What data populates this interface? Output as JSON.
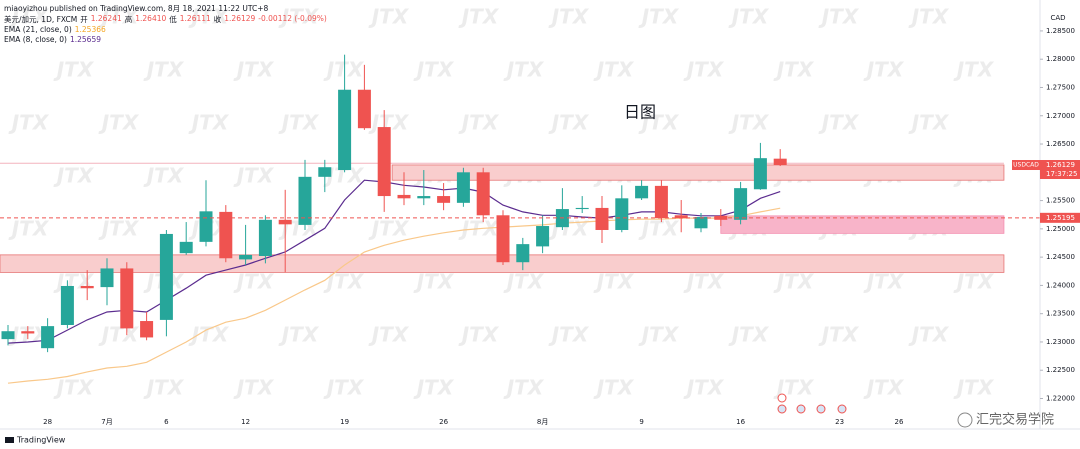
{
  "header": {
    "publisher": "miaoyizhou published on TradingView.com, 8月 18, 2021 11:22 UTC+8",
    "symbol": "美元/加元, 1D, FXCM",
    "open_label": "开",
    "open": "1.26241",
    "high_label": "高",
    "high": "1.26410",
    "low_label": "低",
    "low": "1.26111",
    "close_label": "收",
    "close": "1.26129",
    "change": "-0.00112 (-0.09%)"
  },
  "chart_data": {
    "type": "candlestick",
    "annotation": "日图",
    "watermark": "JTX",
    "categories": [
      null,
      null,
      "28",
      null,
      null,
      "7月",
      null,
      null,
      "6",
      null,
      null,
      null,
      "12",
      null,
      null,
      null,
      null,
      "19",
      null,
      null,
      null,
      null,
      "26",
      null,
      null,
      null,
      null,
      "8月",
      null,
      null,
      null,
      null,
      "9",
      null,
      null,
      null,
      null,
      "16",
      null,
      null,
      null,
      null,
      "23",
      null,
      null,
      "26"
    ],
    "open": [
      1.2305,
      1.2319,
      1.2289,
      1.233,
      1.2399,
      1.2397,
      1.243,
      1.2337,
      1.2339,
      1.2457,
      1.2477,
      1.253,
      1.2446,
      1.2452,
      1.2516,
      1.2507,
      1.2592,
      1.2604,
      1.2746,
      1.268,
      1.256,
      1.2554,
      1.2558,
      1.2546,
      1.26,
      1.2524,
      1.2441,
      1.2469,
      1.2503,
      1.2535,
      1.2537,
      1.2498,
      1.2554,
      1.2576,
      1.2524,
      1.2501,
      1.2523,
      1.2516,
      1.257,
      1.26241,
      null,
      null,
      null,
      null,
      null,
      null
    ],
    "high": [
      1.233,
      1.2328,
      1.2342,
      1.2409,
      1.2427,
      1.2448,
      1.2441,
      1.2353,
      1.2498,
      1.2512,
      1.2586,
      1.2542,
      1.2507,
      1.2524,
      1.2569,
      1.2622,
      1.2622,
      1.2808,
      1.279,
      1.271,
      1.26,
      1.2604,
      1.2581,
      1.2608,
      1.2608,
      1.2533,
      1.2484,
      1.2524,
      1.2572,
      1.2558,
      1.2558,
      1.2577,
      1.2586,
      1.2586,
      1.2551,
      1.2528,
      1.2535,
      1.2583,
      1.2652,
      1.2641,
      null,
      null,
      null,
      null,
      null,
      null
    ],
    "low": [
      1.2294,
      1.2305,
      1.2282,
      1.2324,
      1.2374,
      1.2365,
      1.2312,
      1.2303,
      1.231,
      1.2454,
      1.2469,
      1.2441,
      1.2436,
      1.2439,
      1.2423,
      1.2498,
      1.2565,
      1.26,
      1.2675,
      1.253,
      1.2542,
      1.2542,
      1.2533,
      1.2539,
      1.2512,
      1.2436,
      1.2427,
      1.2457,
      1.2498,
      1.2528,
      1.2475,
      1.2494,
      1.2551,
      1.2512,
      1.2494,
      1.2494,
      1.2505,
      1.2508,
      1.2569,
      1.26111,
      null,
      null,
      null,
      null,
      null,
      null
    ],
    "close": [
      1.2319,
      1.2315,
      1.2328,
      1.2399,
      1.2395,
      1.243,
      1.2324,
      1.2308,
      1.2491,
      1.2477,
      1.2531,
      1.2448,
      1.2454,
      1.2516,
      1.2508,
      1.2592,
      1.2609,
      1.2746,
      1.2678,
      1.2558,
      1.2554,
      1.2558,
      1.2546,
      1.26,
      1.2524,
      1.2441,
      1.2473,
      1.2505,
      1.2535,
      1.2537,
      1.2498,
      1.2554,
      1.2576,
      1.2519,
      1.2519,
      1.2521,
      1.2516,
      1.2572,
      1.2625,
      1.26129,
      null,
      null,
      null,
      null,
      null,
      null
    ],
    "up_color": "#26a69a",
    "down_color": "#ef5350",
    "series": [
      {
        "name": "EMA (21, close, 0)",
        "color": "#f9c88a",
        "values": [
          1.2227,
          1.2231,
          1.2234,
          1.2239,
          1.2247,
          1.2254,
          1.2257,
          1.2264,
          1.2282,
          1.23,
          1.2321,
          1.2335,
          1.2342,
          1.2356,
          1.2374,
          1.2392,
          1.2409,
          1.2436,
          1.2459,
          1.2471,
          1.248,
          1.2487,
          1.2493,
          1.2498,
          1.2501,
          1.2503,
          1.2505,
          1.2507,
          1.251,
          1.2512,
          1.2514,
          1.2516,
          1.2517,
          1.2517,
          1.2519,
          1.2519,
          1.2519,
          1.2523,
          1.253,
          1.25366,
          null,
          null,
          null,
          null,
          null,
          null
        ]
      },
      {
        "name": "EMA (8, close, 0)",
        "color": "#5b2c8f",
        "values": [
          1.2298,
          1.23,
          1.2303,
          1.2321,
          1.2339,
          1.2353,
          1.2356,
          1.2353,
          1.2374,
          1.2395,
          1.2418,
          1.2427,
          1.2436,
          1.2448,
          1.2459,
          1.248,
          1.2501,
          1.2551,
          1.2586,
          1.2583,
          1.2577,
          1.2574,
          1.2569,
          1.2572,
          1.2565,
          1.2542,
          1.253,
          1.2524,
          1.2524,
          1.2521,
          1.2519,
          1.2524,
          1.253,
          1.253,
          1.2526,
          1.2523,
          1.2523,
          1.2533,
          1.2554,
          1.25659,
          null,
          null,
          null,
          null,
          null,
          null
        ]
      }
    ],
    "ylim": [
      1.2162,
      1.2887
    ],
    "yticks": [
      {
        "value": 1.285,
        "label": "1.28500"
      },
      {
        "value": 1.28,
        "label": "1.28000"
      },
      {
        "value": 1.275,
        "label": "1.27500"
      },
      {
        "value": 1.27,
        "label": "1.27000"
      },
      {
        "value": 1.265,
        "label": "1.26500"
      },
      {
        "value": 1.255,
        "label": "1.25500"
      },
      {
        "value": 1.25,
        "label": "1.25000"
      },
      {
        "value": 1.245,
        "label": "1.24500"
      },
      {
        "value": 1.24,
        "label": "1.24000"
      },
      {
        "value": 1.235,
        "label": "1.23500"
      },
      {
        "value": 1.23,
        "label": "1.23000"
      },
      {
        "value": 1.225,
        "label": "1.22500"
      },
      {
        "value": 1.22,
        "label": "1.22000"
      }
    ],
    "zones": [
      {
        "low": 1.2586,
        "high": 1.2613,
        "start": 19.4,
        "end": 50.3,
        "color": "#f9cdcd",
        "border": "#e57373"
      },
      {
        "low": 1.2423,
        "high": 1.2454,
        "start": -0.5,
        "end": 50.3,
        "color": "#f9cdcd",
        "border": "#e57373"
      },
      {
        "low": 1.2492,
        "high": 1.2523,
        "start": 36,
        "end": 50.3,
        "color": "#f8b4c9",
        "border": "#f48fb1"
      }
    ],
    "hline": {
      "value": 1.2616,
      "color": "#f3b3bd"
    },
    "price_line": {
      "value": 1.25195,
      "color": "#ef5350"
    }
  },
  "price_axis": {
    "currency": "CAD",
    "symbol_label": "USDCAD",
    "countdown": "17:37:25"
  },
  "footer": {
    "logo": "TradingView",
    "watermark_cn": "汇完交易学院"
  }
}
